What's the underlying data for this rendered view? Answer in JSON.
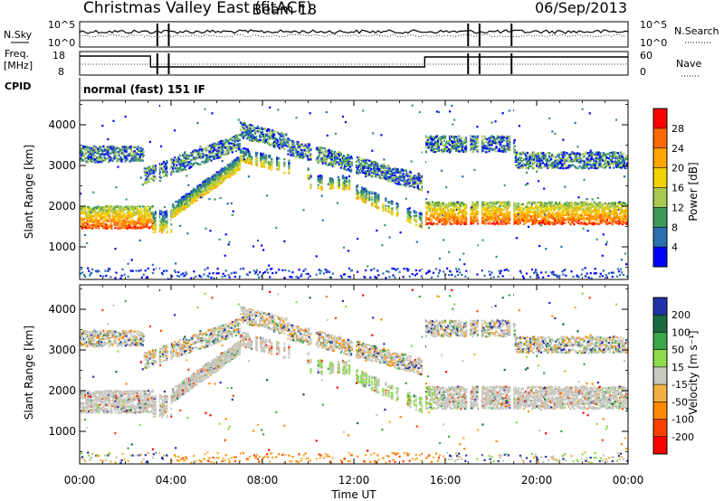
{
  "header": {
    "title": "Christmas Valley East (fitACF)",
    "beam": "Beam 18",
    "date": "06/Sep/2013"
  },
  "panels": {
    "nsky": {
      "label": "N.Sky",
      "tick_top": "10^5",
      "tick_bottom": "10^0"
    },
    "nsearch": {
      "label": "N.Search",
      "tick_top": "10^5",
      "tick_bottom": "10^0"
    },
    "freq": {
      "label_line1": "Freq.",
      "label_line2": "[MHz]",
      "tick_top": "18",
      "tick_bottom": "8"
    },
    "nave": {
      "label": "Nave",
      "tick_top": "60",
      "tick_bottom": "0"
    },
    "cpid": {
      "label": "CPID",
      "value": "normal (fast) 151 IF"
    }
  },
  "colorbars": {
    "power": {
      "label": "Power [dB]",
      "ticks": [
        "28",
        "24",
        "20",
        "16",
        "12",
        "8",
        "4"
      ],
      "colors": [
        "#ff0000",
        "#ff6a00",
        "#ffa500",
        "#f2d200",
        "#a8c850",
        "#3d9a5a",
        "#2a6fb0",
        "#0000ff"
      ]
    },
    "velocity": {
      "label": "Velocity [m s⁻¹]",
      "ticks": [
        "200",
        "100",
        "50",
        "15",
        "-15",
        "-50",
        "-100",
        "-200"
      ],
      "colors": [
        "#2233aa",
        "#1a6a40",
        "#3aa84a",
        "#8edc4c",
        "#c8c8c0",
        "#f2b040",
        "#ff8a00",
        "#ff4000",
        "#ff0000"
      ]
    }
  },
  "chart_data": [
    {
      "type": "heatmap",
      "title": "Power",
      "ylabel": "Slant Range [km]",
      "xlabel": "Time UT",
      "yticks": [
        1000,
        2000,
        3000,
        4000
      ],
      "ylim": [
        200,
        4600
      ],
      "xticks": [
        "00:00",
        "04:00",
        "08:00",
        "12:00",
        "16:00",
        "20:00",
        "00:00"
      ],
      "xlim_hours": [
        0,
        24
      ],
      "colorbar": "Power [dB]"
    },
    {
      "type": "heatmap",
      "title": "Velocity",
      "ylabel": "Slant Range [km]",
      "xlabel": "Time UT",
      "yticks": [
        1000,
        2000,
        3000,
        4000
      ],
      "ylim": [
        200,
        4600
      ],
      "xticks": [
        "00:00",
        "04:00",
        "08:00",
        "12:00",
        "16:00",
        "20:00",
        "00:00"
      ],
      "xlim_hours": [
        0,
        24
      ],
      "colorbar": "Velocity [m s⁻¹]"
    }
  ],
  "xaxis": {
    "label": "Time UT",
    "ticks": [
      "00:00",
      "04:00",
      "08:00",
      "12:00",
      "16:00",
      "20:00",
      "00:00"
    ]
  },
  "yaxis": {
    "label": "Slant Range [km]",
    "ticks": [
      "1000",
      "2000",
      "3000",
      "4000"
    ]
  }
}
